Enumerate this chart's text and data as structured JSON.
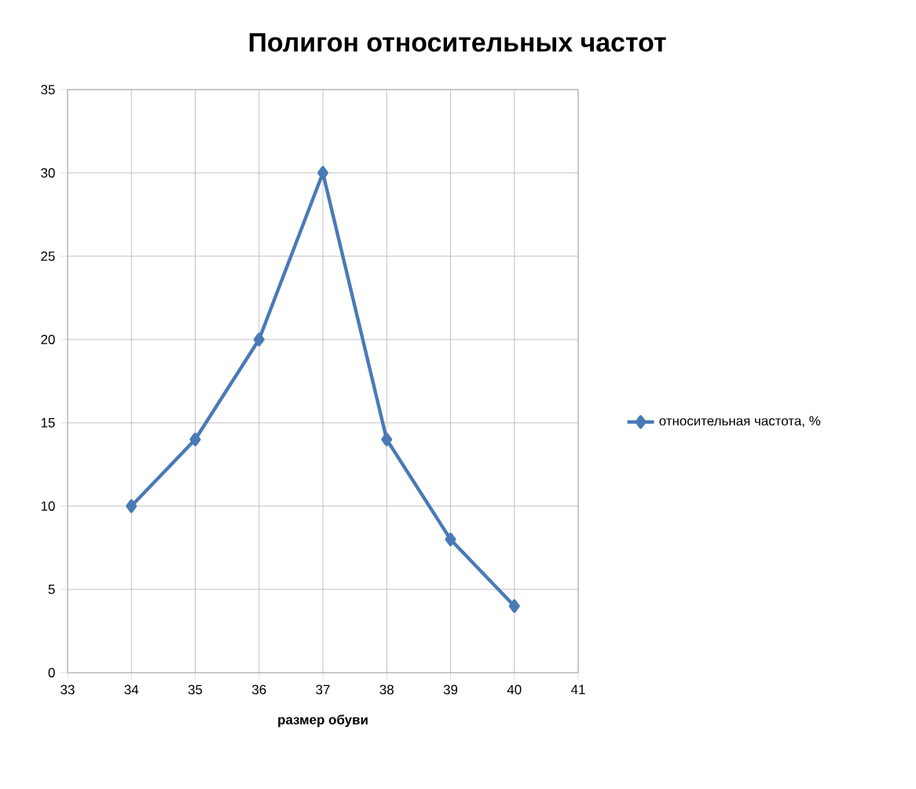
{
  "chart_data": {
    "type": "line",
    "title": "Полигон  относительных частот",
    "xlabel": "размер обуви",
    "x": [
      34,
      35,
      36,
      37,
      38,
      39,
      40
    ],
    "series": [
      {
        "name": "относительная частота, %",
        "color": "#4a7ab5",
        "values": [
          10,
          14,
          20,
          30,
          14,
          8,
          4
        ]
      }
    ],
    "xlim": [
      33,
      41
    ],
    "xticks": [
      33,
      34,
      35,
      36,
      37,
      38,
      39,
      40,
      41
    ],
    "ylim": [
      0,
      35
    ],
    "yticks": [
      0,
      5,
      10,
      15,
      20,
      25,
      30,
      35
    ],
    "grid": true,
    "legend": "right",
    "marker": "diamond",
    "line_style": "solid"
  }
}
